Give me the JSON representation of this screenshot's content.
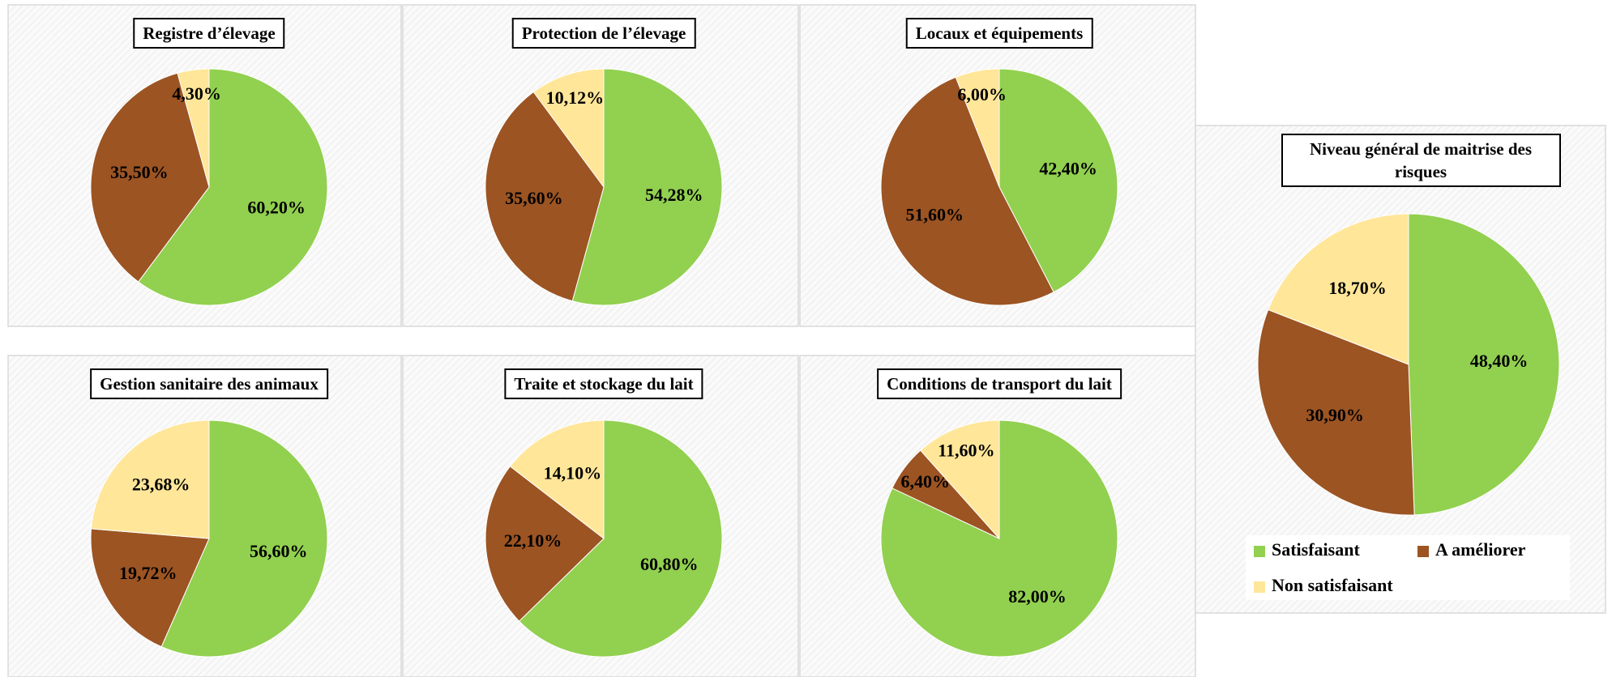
{
  "chart_data": [
    {
      "type": "pie",
      "title": "Registre d’élevage",
      "values": [
        60.2,
        35.5,
        4.3
      ],
      "value_labels": [
        "60,20%",
        "35,50%",
        "4,30%"
      ],
      "colors": [
        "#92d050",
        "#9c5423",
        "#ffe699"
      ]
    },
    {
      "type": "pie",
      "title": "Protection de l’élevage",
      "values": [
        54.28,
        35.6,
        10.12
      ],
      "value_labels": [
        "54,28%",
        "35,60%",
        "10,12%"
      ],
      "colors": [
        "#92d050",
        "#9c5423",
        "#ffe699"
      ]
    },
    {
      "type": "pie",
      "title": "Locaux et équipements",
      "values": [
        42.4,
        51.6,
        6.0
      ],
      "value_labels": [
        "42,40%",
        "51,60%",
        "6,00%"
      ],
      "colors": [
        "#92d050",
        "#9c5423",
        "#ffe699"
      ]
    },
    {
      "type": "pie",
      "title": "Gestion sanitaire des animaux",
      "values": [
        56.6,
        19.72,
        23.68
      ],
      "value_labels": [
        "56,60%",
        "19,72%",
        "23,68%"
      ],
      "colors": [
        "#92d050",
        "#9c5423",
        "#ffe699"
      ]
    },
    {
      "type": "pie",
      "title": "Traite et stockage du lait",
      "values": [
        60.8,
        22.1,
        14.1
      ],
      "value_labels": [
        "60,80%",
        "22,10%",
        "14,10%"
      ],
      "colors": [
        "#92d050",
        "#9c5423",
        "#ffe699"
      ]
    },
    {
      "type": "pie",
      "title": "Conditions de transport du lait",
      "values": [
        82.0,
        6.4,
        11.6
      ],
      "value_labels": [
        "82,00%",
        "6,40%",
        "11,60%"
      ],
      "colors": [
        "#92d050",
        "#9c5423",
        "#ffe699"
      ]
    },
    {
      "type": "pie",
      "title": "Niveau général de maitrise des risques",
      "categories": [
        "Satisfaisant",
        "A améliorer",
        "Non satisfaisant"
      ],
      "values": [
        48.4,
        30.9,
        18.7
      ],
      "value_labels": [
        "48,40%",
        "30,90%",
        "18,70%"
      ],
      "colors": [
        "#92d050",
        "#9c5423",
        "#ffe699"
      ],
      "legend": "bottom"
    }
  ]
}
